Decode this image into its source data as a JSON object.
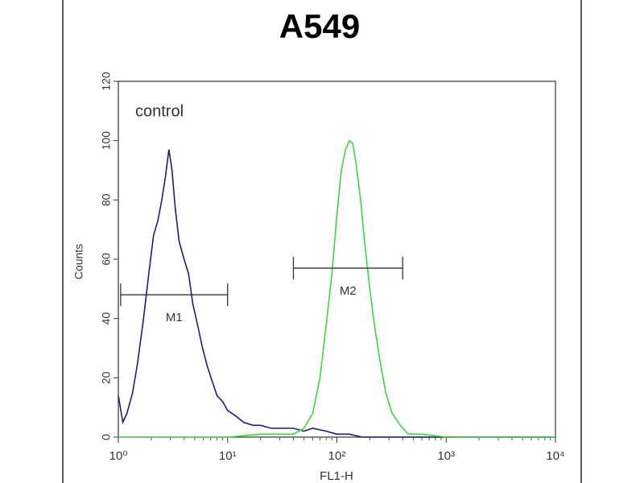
{
  "chart_data": {
    "type": "line",
    "title": "A549",
    "xlabel": "FL1-H",
    "ylabel": "Counts",
    "xscale": "log",
    "xlim": [
      1,
      10000
    ],
    "xticks": [
      {
        "value": 1,
        "label": "10⁰"
      },
      {
        "value": 10,
        "label": "10¹"
      },
      {
        "value": 100,
        "label": "10²"
      },
      {
        "value": 1000,
        "label": "10³"
      },
      {
        "value": 10000,
        "label": "10⁴"
      }
    ],
    "ylim": [
      0,
      120
    ],
    "yticks": [
      0,
      20,
      40,
      60,
      80,
      100,
      120
    ],
    "series": [
      {
        "name": "control",
        "color": "#1c1f70",
        "x": [
          1.0,
          1.1,
          1.2,
          1.35,
          1.5,
          1.7,
          1.9,
          2.1,
          2.3,
          2.5,
          2.7,
          2.9,
          3.1,
          3.3,
          3.6,
          4.0,
          4.4,
          4.8,
          5.3,
          5.9,
          6.5,
          7.2,
          8.0,
          9.0,
          10,
          12,
          14,
          17,
          20,
          25,
          30,
          40,
          50,
          60,
          80,
          100,
          130,
          170,
          250,
          500,
          1000,
          10000
        ],
        "values": [
          14,
          5,
          8,
          15,
          25,
          40,
          55,
          68,
          73,
          80,
          88,
          97,
          90,
          78,
          66,
          60,
          55,
          45,
          38,
          30,
          24,
          19,
          14,
          12,
          9,
          7,
          5,
          4,
          4,
          3,
          3,
          3,
          2,
          3,
          2,
          1,
          1,
          0,
          0,
          0,
          0,
          0
        ]
      },
      {
        "color": "#3fd43f",
        "x": [
          1,
          10,
          20,
          40,
          50,
          60,
          70,
          80,
          90,
          100,
          110,
          120,
          130,
          140,
          150,
          165,
          180,
          200,
          220,
          250,
          280,
          320,
          380,
          450,
          600,
          1000,
          3000,
          10000
        ],
        "values": [
          0,
          0,
          1,
          1,
          3,
          8,
          20,
          38,
          55,
          75,
          90,
          97,
          100,
          99,
          92,
          80,
          65,
          50,
          38,
          25,
          15,
          8,
          4,
          1,
          1,
          0,
          0,
          0
        ]
      }
    ],
    "markers": [
      {
        "label": "M1",
        "x": [
          1.05,
          10
        ],
        "y": 48
      },
      {
        "label": "M2",
        "x": [
          40,
          400
        ],
        "y": 57
      }
    ]
  }
}
